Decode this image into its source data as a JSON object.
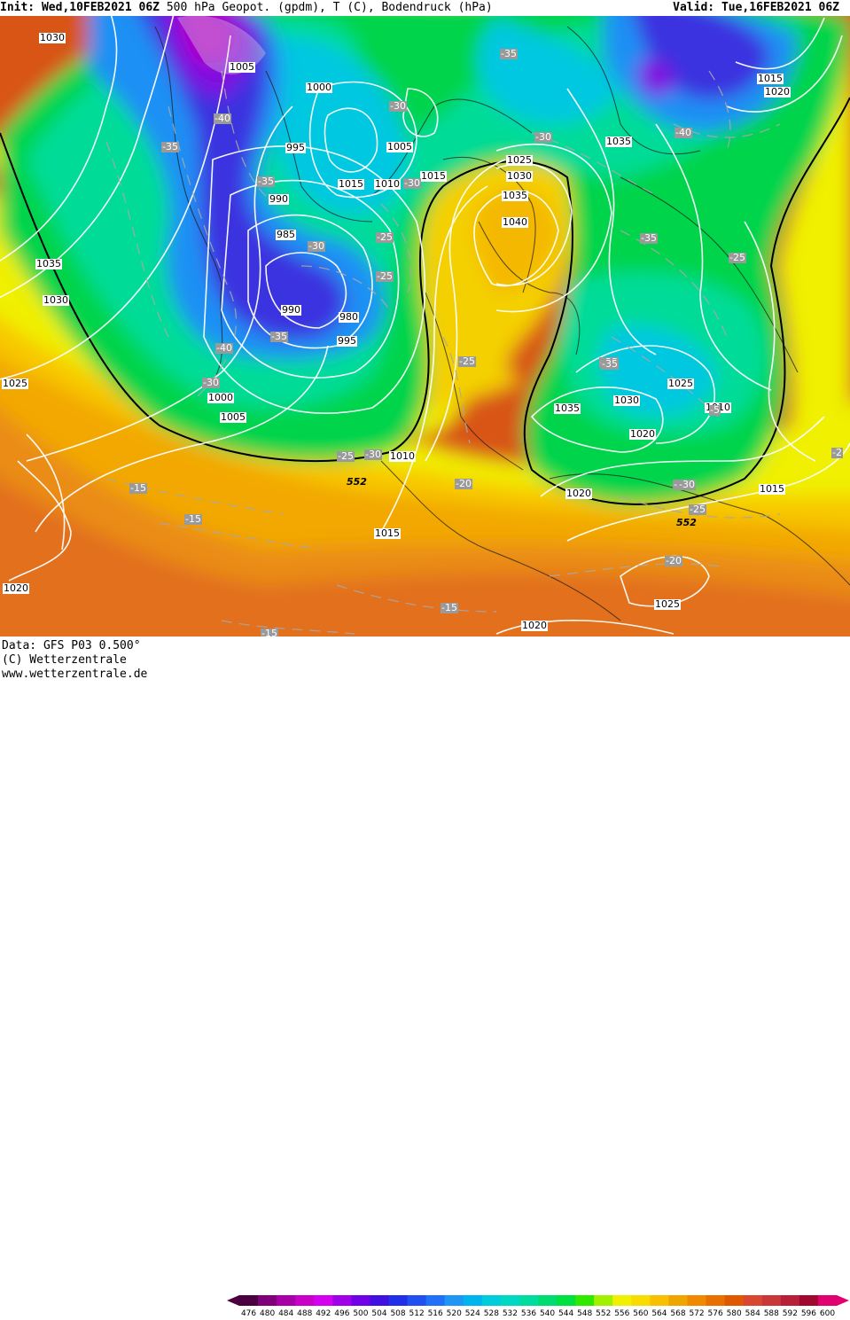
{
  "header": {
    "init_label": "Init: Wed,10FEB2021 06Z",
    "title": "500 hPa Geopot. (gpdm), T (C), Bodendruck (hPa)",
    "valid_label": "Valid: Tue,16FEB2021 06Z"
  },
  "footer": {
    "source_line1": "Data: GFS P03 0.500°",
    "source_line2": "(C) Wetterzentrale",
    "source_line3": "www.wetterzentrale.de"
  },
  "colorbar": {
    "labels": [
      "476",
      "480",
      "484",
      "488",
      "492",
      "496",
      "500",
      "504",
      "508",
      "512",
      "516",
      "520",
      "524",
      "528",
      "532",
      "536",
      "540",
      "544",
      "548",
      "552",
      "556",
      "560",
      "564",
      "568",
      "572",
      "576",
      "580",
      "584",
      "588",
      "592",
      "596",
      "600"
    ],
    "colors": [
      "#4a0040",
      "#80007a",
      "#a600a6",
      "#c800c8",
      "#d400f0",
      "#a000e8",
      "#7000e8",
      "#4010e0",
      "#2030e8",
      "#2050f0",
      "#2070f8",
      "#1f95f5",
      "#00b4f0",
      "#00ccdc",
      "#00d8c4",
      "#00dca0",
      "#00dc70",
      "#00e040",
      "#30e800",
      "#a0f000",
      "#f0f000",
      "#f8dc00",
      "#f8c000",
      "#f0a400",
      "#f08800",
      "#e87000",
      "#e05800",
      "#d84830",
      "#c83838",
      "#b82038",
      "#a00830",
      "#e00070"
    ]
  },
  "map_labels": {
    "isobars": [
      {
        "text": "1030"
      },
      {
        "text": "1005"
      },
      {
        "text": "1000"
      },
      {
        "text": "995"
      },
      {
        "text": "990"
      },
      {
        "text": "985"
      },
      {
        "text": "980"
      },
      {
        "text": "990"
      },
      {
        "text": "995"
      },
      {
        "text": "1000"
      },
      {
        "text": "1005"
      },
      {
        "text": "1035"
      },
      {
        "text": "1030"
      },
      {
        "text": "1025"
      },
      {
        "text": "1020"
      },
      {
        "text": "1015"
      },
      {
        "text": "1010"
      },
      {
        "text": "1005"
      },
      {
        "text": "1015"
      },
      {
        "text": "1025"
      },
      {
        "text": "1030"
      },
      {
        "text": "1035"
      },
      {
        "text": "1040"
      },
      {
        "text": "1010"
      },
      {
        "text": "1015"
      },
      {
        "text": "1035"
      },
      {
        "text": "1015"
      },
      {
        "text": "1020"
      },
      {
        "text": "1035"
      },
      {
        "text": "1030"
      },
      {
        "text": "1025"
      },
      {
        "text": "1020"
      },
      {
        "text": "1010"
      },
      {
        "text": "1015"
      },
      {
        "text": "1020"
      },
      {
        "text": "1025"
      },
      {
        "text": "1020"
      }
    ],
    "temperatures": [
      {
        "text": "-35"
      },
      {
        "text": "-40"
      },
      {
        "text": "-35"
      },
      {
        "text": "-30"
      },
      {
        "text": "-25"
      },
      {
        "text": "-25"
      },
      {
        "text": "-30"
      },
      {
        "text": "-30"
      },
      {
        "text": "-35"
      },
      {
        "text": "-40"
      },
      {
        "text": "-30"
      },
      {
        "text": "-35"
      },
      {
        "text": "-30"
      },
      {
        "text": "-35"
      },
      {
        "text": "-25"
      },
      {
        "text": "-25"
      },
      {
        "text": "-30"
      },
      {
        "text": "-20"
      },
      {
        "text": "-15"
      },
      {
        "text": "-15"
      },
      {
        "text": "-15"
      },
      {
        "text": "-15"
      },
      {
        "text": "-35"
      },
      {
        "text": "-40"
      },
      {
        "text": "-30"
      },
      {
        "text": "-35"
      },
      {
        "text": "-25"
      },
      {
        "text": "-35"
      },
      {
        "text": "-5"
      },
      {
        "text": "-30"
      },
      {
        "text": "-25"
      },
      {
        "text": "-20"
      },
      {
        "text": "-2"
      }
    ],
    "contour_552": [
      {
        "text": "552"
      },
      {
        "text": "552"
      }
    ]
  }
}
